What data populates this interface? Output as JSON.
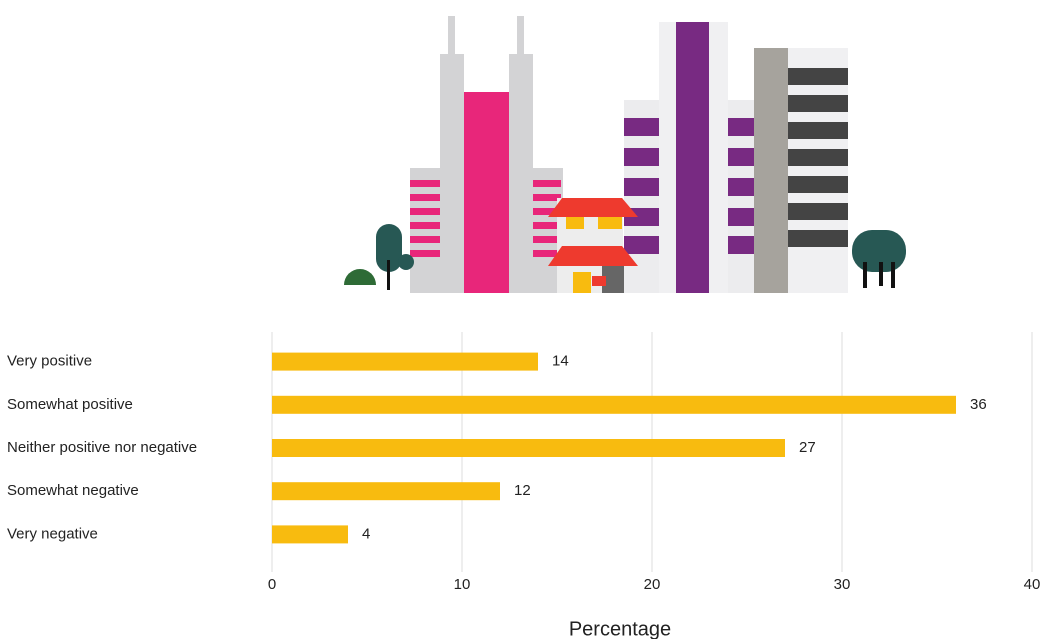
{
  "chart_data": {
    "type": "hbar",
    "categories": [
      "Very positive",
      "Somewhat positive",
      "Neither positive nor negative",
      "Somewhat negative",
      "Very negative"
    ],
    "values": [
      14,
      36,
      27,
      12,
      4
    ],
    "color": "#f8bb0f",
    "xlabel": "Percentage",
    "xlim": [
      0,
      40
    ],
    "xticks": [
      0,
      10,
      20,
      30,
      40
    ],
    "grid": true
  }
}
